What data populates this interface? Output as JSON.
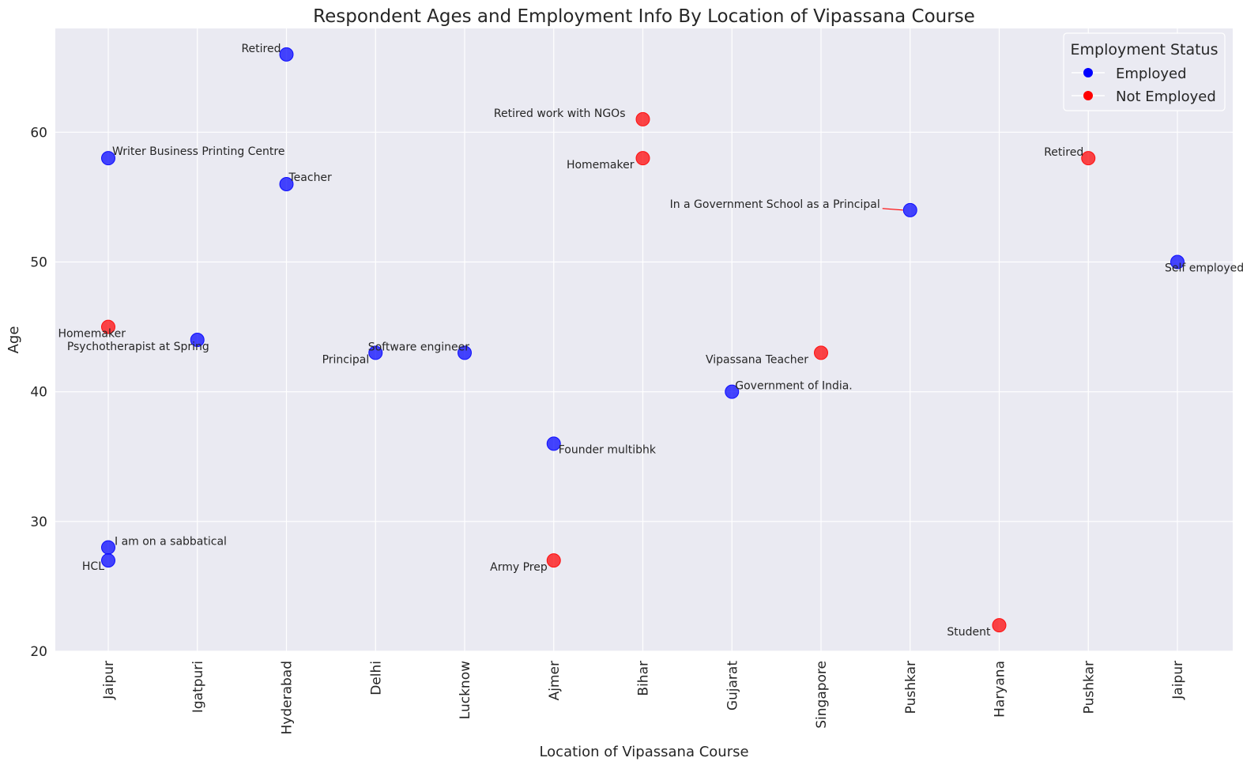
{
  "chart_data": {
    "type": "scatter",
    "title": "Respondent Ages and Employment Info By Location of Vipassana Course",
    "xlabel": "Location of Vipassana Course",
    "ylabel": "Age",
    "categories": [
      "Jaipur",
      "Igatpuri",
      "Hyderabad",
      "Delhi",
      "Lucknow",
      "Ajmer",
      "Bihar",
      "Gujarat",
      "Singapore",
      "Pushkar",
      "Haryana",
      "Pushkar",
      "Jaipur"
    ],
    "ylim": [
      20,
      68
    ],
    "yticks": [
      20,
      30,
      40,
      50,
      60
    ],
    "grid": true,
    "legend": {
      "title": "Employment Status",
      "placement": "top-right",
      "entries": [
        {
          "label": "Employed",
          "color": "#0000ff"
        },
        {
          "label": "Not Employed",
          "color": "#ff0000"
        }
      ]
    },
    "series": [
      {
        "name": "Employed",
        "color": "#0000ff",
        "points": [
          {
            "x": 0,
            "y": 58,
            "label": "Writer Business Printing Centre"
          },
          {
            "x": 0,
            "y": 28,
            "label": "I am on a sabbatical"
          },
          {
            "x": 0,
            "y": 27,
            "label": "HCL"
          },
          {
            "x": 1,
            "y": 44,
            "label": "Psychotherapist at Spring"
          },
          {
            "x": 2,
            "y": 66,
            "label": "Retired"
          },
          {
            "x": 2,
            "y": 56,
            "label": "Teacher"
          },
          {
            "x": 3,
            "y": 43,
            "label": "Principal"
          },
          {
            "x": 4,
            "y": 43,
            "label": "Software engineer"
          },
          {
            "x": 5,
            "y": 36,
            "label": "Founder multibhk"
          },
          {
            "x": 7,
            "y": 40,
            "label": "Government of India."
          },
          {
            "x": 9,
            "y": 54,
            "label": "In a Government School as a Principal"
          },
          {
            "x": 12,
            "y": 50,
            "label": "Self employed"
          }
        ]
      },
      {
        "name": "Not Employed",
        "color": "#ff0000",
        "points": [
          {
            "x": 0,
            "y": 45,
            "label": "Homemaker"
          },
          {
            "x": 5,
            "y": 27,
            "label": "Army Prep"
          },
          {
            "x": 6,
            "y": 61,
            "label": "Retired work with NGOs"
          },
          {
            "x": 6,
            "y": 58,
            "label": "Homemaker"
          },
          {
            "x": 8,
            "y": 43,
            "label": "Vipassana Teacher"
          },
          {
            "x": 10,
            "y": 22,
            "label": "Student"
          },
          {
            "x": 11,
            "y": 58,
            "label": "Retired"
          }
        ]
      }
    ]
  }
}
